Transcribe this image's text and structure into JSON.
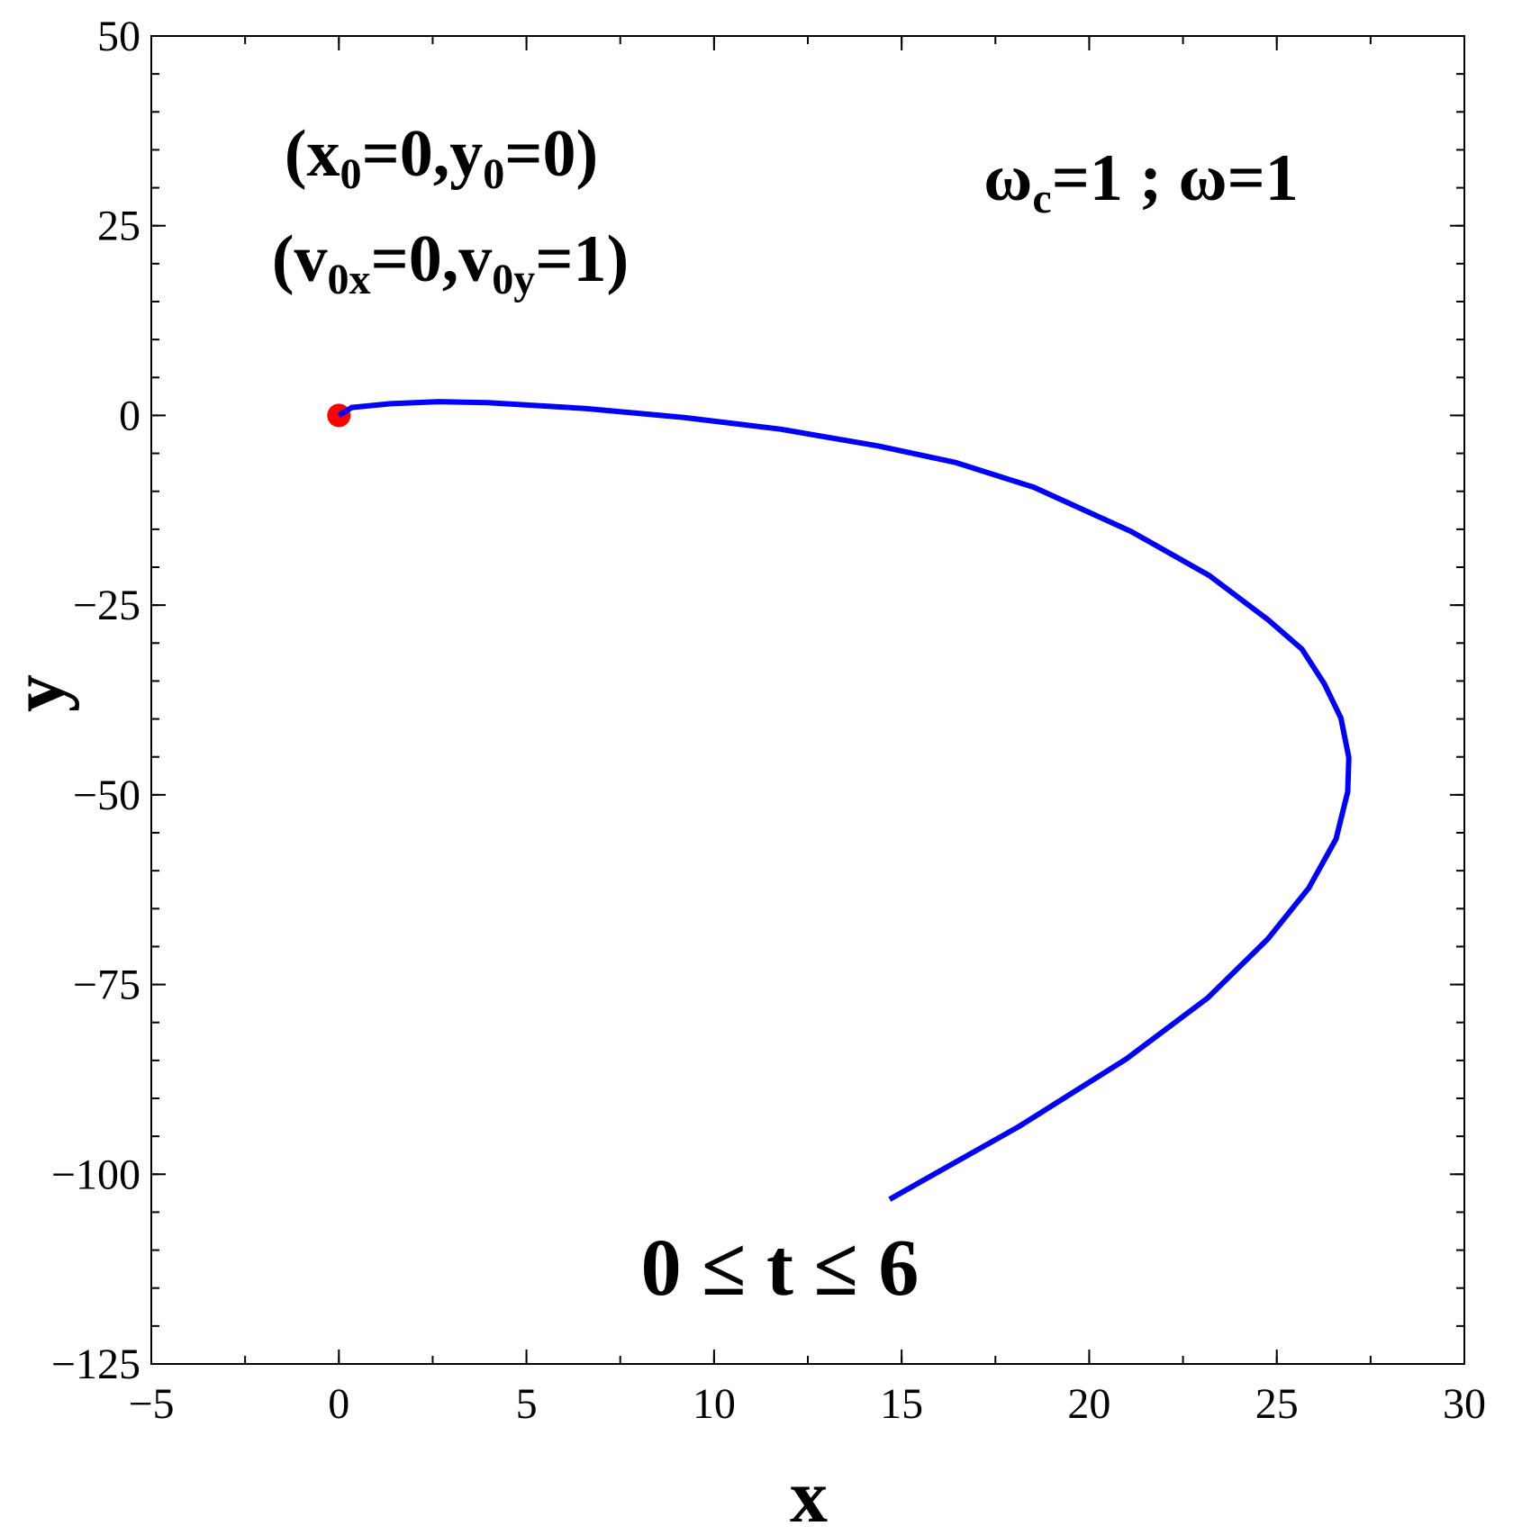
{
  "chart_data": {
    "type": "line",
    "xlabel": "x",
    "ylabel": "y",
    "xlim": [
      -5,
      30
    ],
    "ylim": [
      -125,
      50
    ],
    "xticks": [
      {
        "value": -5,
        "label": "−5"
      },
      0,
      5,
      10,
      15,
      20,
      25,
      30
    ],
    "yticks": [
      50,
      25,
      0,
      {
        "value": -25,
        "label": "−25"
      },
      {
        "value": -50,
        "label": "−50"
      },
      {
        "value": -75,
        "label": "−75"
      },
      {
        "value": -100,
        "label": "−100"
      },
      {
        "value": -125,
        "label": "−125"
      }
    ],
    "x_minor_step": 2.5,
    "y_minor_step": 5,
    "series": [
      {
        "color": "#0000ff",
        "x": [
          0,
          0.34,
          1.38,
          2.68,
          3.97,
          6.57,
          9.17,
          11.77,
          14.37,
          16.45,
          18.52,
          21.12,
          23.2,
          24.76,
          25.67,
          26.27,
          26.71,
          26.92,
          26.89,
          26.58,
          25.85,
          24.76,
          23.15,
          20.99,
          18.13,
          14.68
        ],
        "values": [
          0,
          1.04,
          1.55,
          1.81,
          1.68,
          0.91,
          -0.26,
          -1.81,
          -4.02,
          -6.22,
          -9.46,
          -15.3,
          -21.1,
          -26.9,
          -30.8,
          -35.4,
          -39.9,
          -45.1,
          -49.6,
          -55.8,
          -62.3,
          -69.0,
          -76.8,
          -84.8,
          -93.7,
          -103.3
        ]
      },
      {
        "type": "scatter",
        "color": "#ff0000",
        "x": [
          0
        ],
        "values": [
          0
        ]
      }
    ],
    "annotations": [
      {
        "parts": [
          {
            "text": "(x"
          },
          {
            "sub": "0"
          },
          {
            "text": "=0,y"
          },
          {
            "sub": "0"
          },
          {
            "text": "=0)"
          }
        ]
      },
      {
        "parts": [
          {
            "text": "(v"
          },
          {
            "sub": "0x"
          },
          {
            "text": "=0,v"
          },
          {
            "sub": "0y"
          },
          {
            "text": "=1)"
          }
        ]
      },
      {
        "parts": [
          {
            "text": "ω"
          },
          {
            "sub": "c"
          },
          {
            "text": "=1 ; ω=1"
          }
        ]
      },
      {
        "parts": [
          {
            "text": "0 ≤ t ≤ 6"
          }
        ]
      }
    ]
  }
}
